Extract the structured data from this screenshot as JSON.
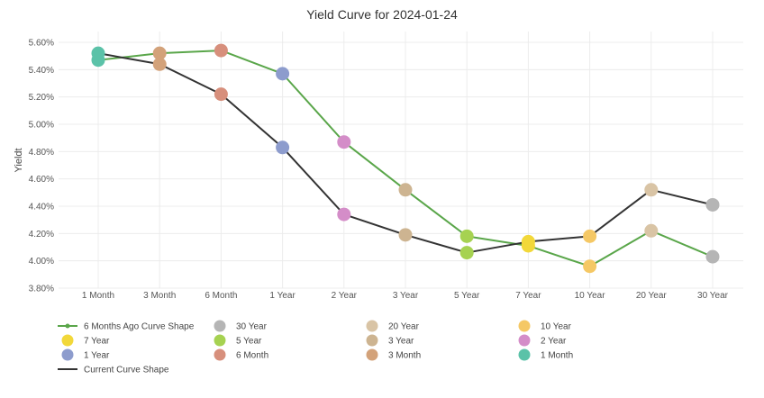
{
  "chart_data": {
    "type": "line",
    "title": "Yield Curve for 2024-01-24",
    "xlabel": "",
    "ylabel": "Yieldt",
    "categories": [
      "1 Month",
      "3 Month",
      "6 Month",
      "1 Year",
      "2 Year",
      "3 Year",
      "5 Year",
      "7 Year",
      "10 Year",
      "20 Year",
      "30 Year"
    ],
    "y_ticks": [
      "3.80%",
      "4.00%",
      "4.20%",
      "4.40%",
      "4.60%",
      "4.80%",
      "5.00%",
      "5.20%",
      "5.40%",
      "5.60%"
    ],
    "ylim": [
      3.8,
      5.65
    ],
    "grid": true,
    "legend_position": "bottom",
    "series": [
      {
        "name": "6 Months Ago Curve Shape",
        "color": "#5aa64a",
        "values": [
          5.47,
          5.52,
          5.54,
          5.37,
          4.87,
          4.52,
          4.18,
          4.11,
          3.96,
          4.22,
          4.03
        ]
      },
      {
        "name": "Current Curve Shape",
        "color": "#333333",
        "values": [
          5.52,
          5.44,
          5.22,
          4.83,
          4.34,
          4.19,
          4.06,
          4.14,
          4.18,
          4.52,
          4.41
        ]
      }
    ],
    "marker_colors": {
      "1 Month": "#5bc2a8",
      "3 Month": "#d3a27a",
      "6 Month": "#d78f7c",
      "1 Year": "#8d9ccd",
      "2 Year": "#d48dc8",
      "3 Year": "#cdb491",
      "5 Year": "#a6d251",
      "7 Year": "#f2d83a",
      "10 Year": "#f5c865",
      "20 Year": "#d9c4a5",
      "30 Year": "#b5b5b5"
    },
    "legend": [
      {
        "label": "6 Months Ago Curve Shape",
        "kind": "line-marker",
        "color": "#5aa64a"
      },
      {
        "label": "30 Year",
        "kind": "marker",
        "color": "#b5b5b5"
      },
      {
        "label": "20 Year",
        "kind": "marker",
        "color": "#d9c4a5"
      },
      {
        "label": "10 Year",
        "kind": "marker",
        "color": "#f5c865"
      },
      {
        "label": "7 Year",
        "kind": "marker",
        "color": "#f2d83a"
      },
      {
        "label": "5 Year",
        "kind": "marker",
        "color": "#a6d251"
      },
      {
        "label": "3 Year",
        "kind": "marker",
        "color": "#cdb491"
      },
      {
        "label": "2 Year",
        "kind": "marker",
        "color": "#d48dc8"
      },
      {
        "label": "1 Year",
        "kind": "marker",
        "color": "#8d9ccd"
      },
      {
        "label": "6 Month",
        "kind": "marker",
        "color": "#d78f7c"
      },
      {
        "label": "3 Month",
        "kind": "marker",
        "color": "#d3a27a"
      },
      {
        "label": "1 Month",
        "kind": "marker",
        "color": "#5bc2a8"
      },
      {
        "label": "Current Curve Shape",
        "kind": "line",
        "color": "#333333"
      }
    ]
  }
}
